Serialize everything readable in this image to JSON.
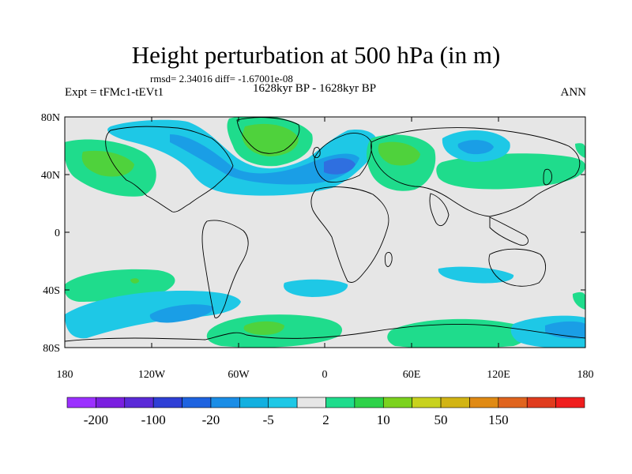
{
  "title": "Height perturbation at 500 hPa (in m)",
  "stats": "rmsd= 2.34016 diff= -1.67001e-08",
  "experiment": "Expt = tFMc1-tEVt1",
  "period": "1628kyr BP - 1628kyr BP",
  "season": "ANN",
  "lat_labels": [
    "80N",
    "40N",
    "0",
    "40S",
    "80S"
  ],
  "lon_labels": [
    "180",
    "120W",
    "60W",
    "0",
    "60E",
    "120E",
    "180"
  ],
  "colorbar": {
    "labels": [
      "-200",
      "-100",
      "-20",
      "-5",
      "2",
      "10",
      "50",
      "150"
    ],
    "colors": [
      "#9b30ff",
      "#7a1fe0",
      "#5a2ad8",
      "#2f3fd6",
      "#1e63e0",
      "#1a8de6",
      "#12b0e0",
      "#1ec8e6",
      "#e6e6e6",
      "#1fdc8c",
      "#2ed24a",
      "#7bd21e",
      "#c8d21e",
      "#d2b414",
      "#e08a14",
      "#e0641e",
      "#e03c1e",
      "#f01e1e"
    ]
  },
  "colors": {
    "background": "#e6e6e6",
    "pos_light": "#1fdc8c",
    "pos_mid": "#4fd23c",
    "neg_light": "#1ec8e6",
    "neg_mid": "#1a9ee6",
    "neg_dark": "#2f6fe0"
  }
}
